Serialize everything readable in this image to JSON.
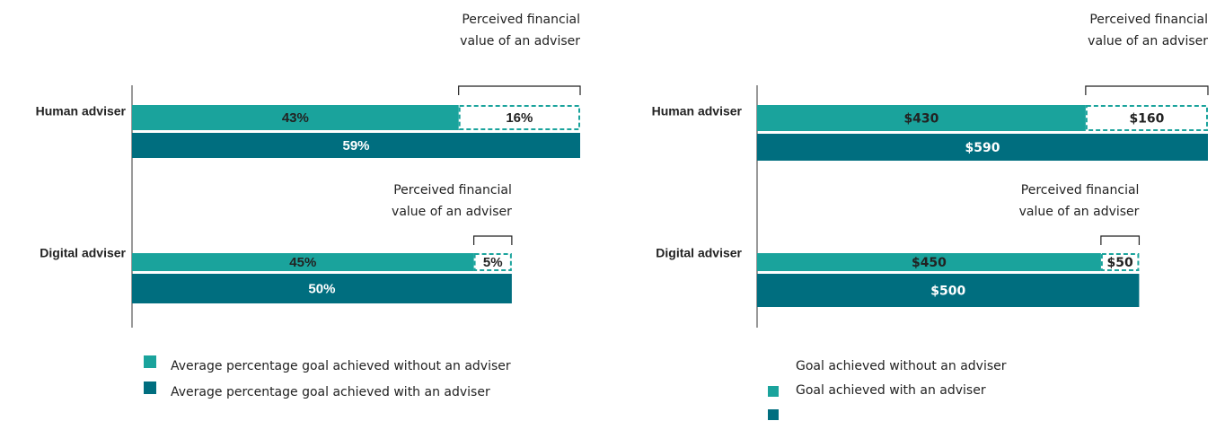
{
  "chart_data": [
    {
      "type": "bar",
      "categories": [
        "Human adviser",
        "Digital adviser"
      ],
      "series": [
        {
          "name": "Average percentage goal achieved without an adviser",
          "color": "#1aa39c",
          "values": [
            43,
            45
          ],
          "value_labels": [
            "43%",
            "45%"
          ]
        },
        {
          "name": "Average percentage goal achieved with an adviser",
          "color": "#006e7f",
          "values": [
            59,
            50
          ],
          "value_labels": [
            "59%",
            "50%"
          ]
        },
        {
          "color": "#1aa39c",
          "dashed": true,
          "values": [
            16,
            5
          ],
          "value_labels": [
            "16%",
            "5%"
          ]
        }
      ],
      "annotations": [
        [
          "Perceived financial",
          "value of an adviser"
        ],
        [
          "Perceived financial",
          "value of an adviser"
        ]
      ]
    },
    {
      "type": "bar",
      "categories": [
        "Human  adviser",
        "Digital  adviser"
      ],
      "series": [
        {
          "name": "Goal achieved without an adviser",
          "color": "#1aa39c",
          "values": [
            430,
            450
          ],
          "value_labels": [
            "$430",
            "$450"
          ]
        },
        {
          "name": "Goal achieved with an adviser",
          "color": "#006e7f",
          "values": [
            590,
            500
          ],
          "value_labels": [
            "$590",
            "$500"
          ]
        },
        {
          "color": "#1aa39c",
          "dashed": true,
          "values": [
            160,
            50
          ],
          "value_labels": [
            "$160",
            "$50"
          ]
        }
      ],
      "annotations": [
        [
          "Perceived financial",
          "value of an adviser"
        ],
        [
          "Perceived financial",
          "value of an adviser"
        ]
      ]
    }
  ]
}
